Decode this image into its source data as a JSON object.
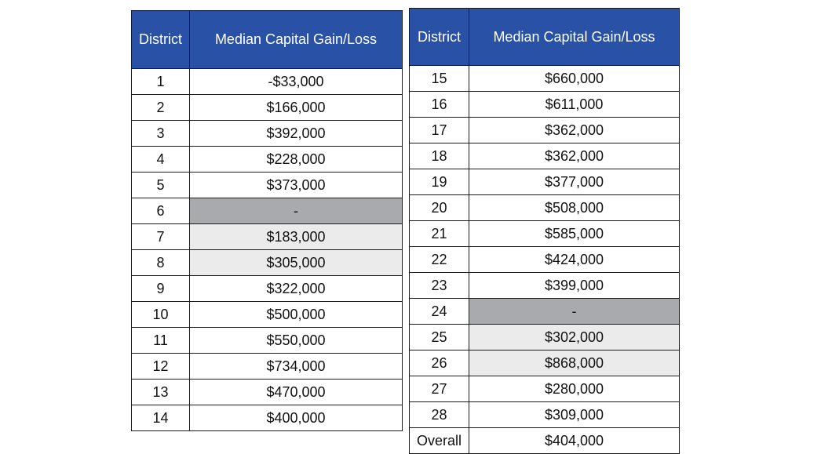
{
  "left_table": {
    "header": {
      "district": "District",
      "gain": "Median Capital Gain/Loss"
    },
    "rows": [
      {
        "district": "1",
        "value": "-$33,000",
        "shade": ""
      },
      {
        "district": "2",
        "value": "$166,000",
        "shade": ""
      },
      {
        "district": "3",
        "value": "$392,000",
        "shade": ""
      },
      {
        "district": "4",
        "value": "$228,000",
        "shade": ""
      },
      {
        "district": "5",
        "value": "$373,000",
        "shade": ""
      },
      {
        "district": "6",
        "value": "-",
        "shade": "dark"
      },
      {
        "district": "7",
        "value": "$183,000",
        "shade": "light"
      },
      {
        "district": "8",
        "value": "$305,000",
        "shade": "light"
      },
      {
        "district": "9",
        "value": "$322,000",
        "shade": ""
      },
      {
        "district": "10",
        "value": "$500,000",
        "shade": ""
      },
      {
        "district": "11",
        "value": "$550,000",
        "shade": ""
      },
      {
        "district": "12",
        "value": "$734,000",
        "shade": ""
      },
      {
        "district": "13",
        "value": "$470,000",
        "shade": ""
      },
      {
        "district": "14",
        "value": "$400,000",
        "shade": ""
      }
    ]
  },
  "right_table": {
    "header": {
      "district": "District",
      "gain": "Median Capital Gain/Loss"
    },
    "rows": [
      {
        "district": "15",
        "value": "$660,000",
        "shade": ""
      },
      {
        "district": "16",
        "value": "$611,000",
        "shade": ""
      },
      {
        "district": "17",
        "value": "$362,000",
        "shade": ""
      },
      {
        "district": "18",
        "value": "$362,000",
        "shade": ""
      },
      {
        "district": "19",
        "value": "$377,000",
        "shade": ""
      },
      {
        "district": "20",
        "value": "$508,000",
        "shade": ""
      },
      {
        "district": "21",
        "value": "$585,000",
        "shade": ""
      },
      {
        "district": "22",
        "value": "$424,000",
        "shade": ""
      },
      {
        "district": "23",
        "value": "$399,000",
        "shade": ""
      },
      {
        "district": "24",
        "value": "-",
        "shade": "dark"
      },
      {
        "district": "25",
        "value": "$302,000",
        "shade": "light"
      },
      {
        "district": "26",
        "value": "$868,000",
        "shade": "light"
      },
      {
        "district": "27",
        "value": "$280,000",
        "shade": ""
      },
      {
        "district": "28",
        "value": "$309,000",
        "shade": ""
      },
      {
        "district": "Overall",
        "value": "$404,000",
        "shade": ""
      }
    ]
  },
  "colors": {
    "header_bg": "#2952a6",
    "header_text": "#ffffff",
    "dark_shade": "#a9aaad",
    "light_shade": "#ebebeb"
  }
}
